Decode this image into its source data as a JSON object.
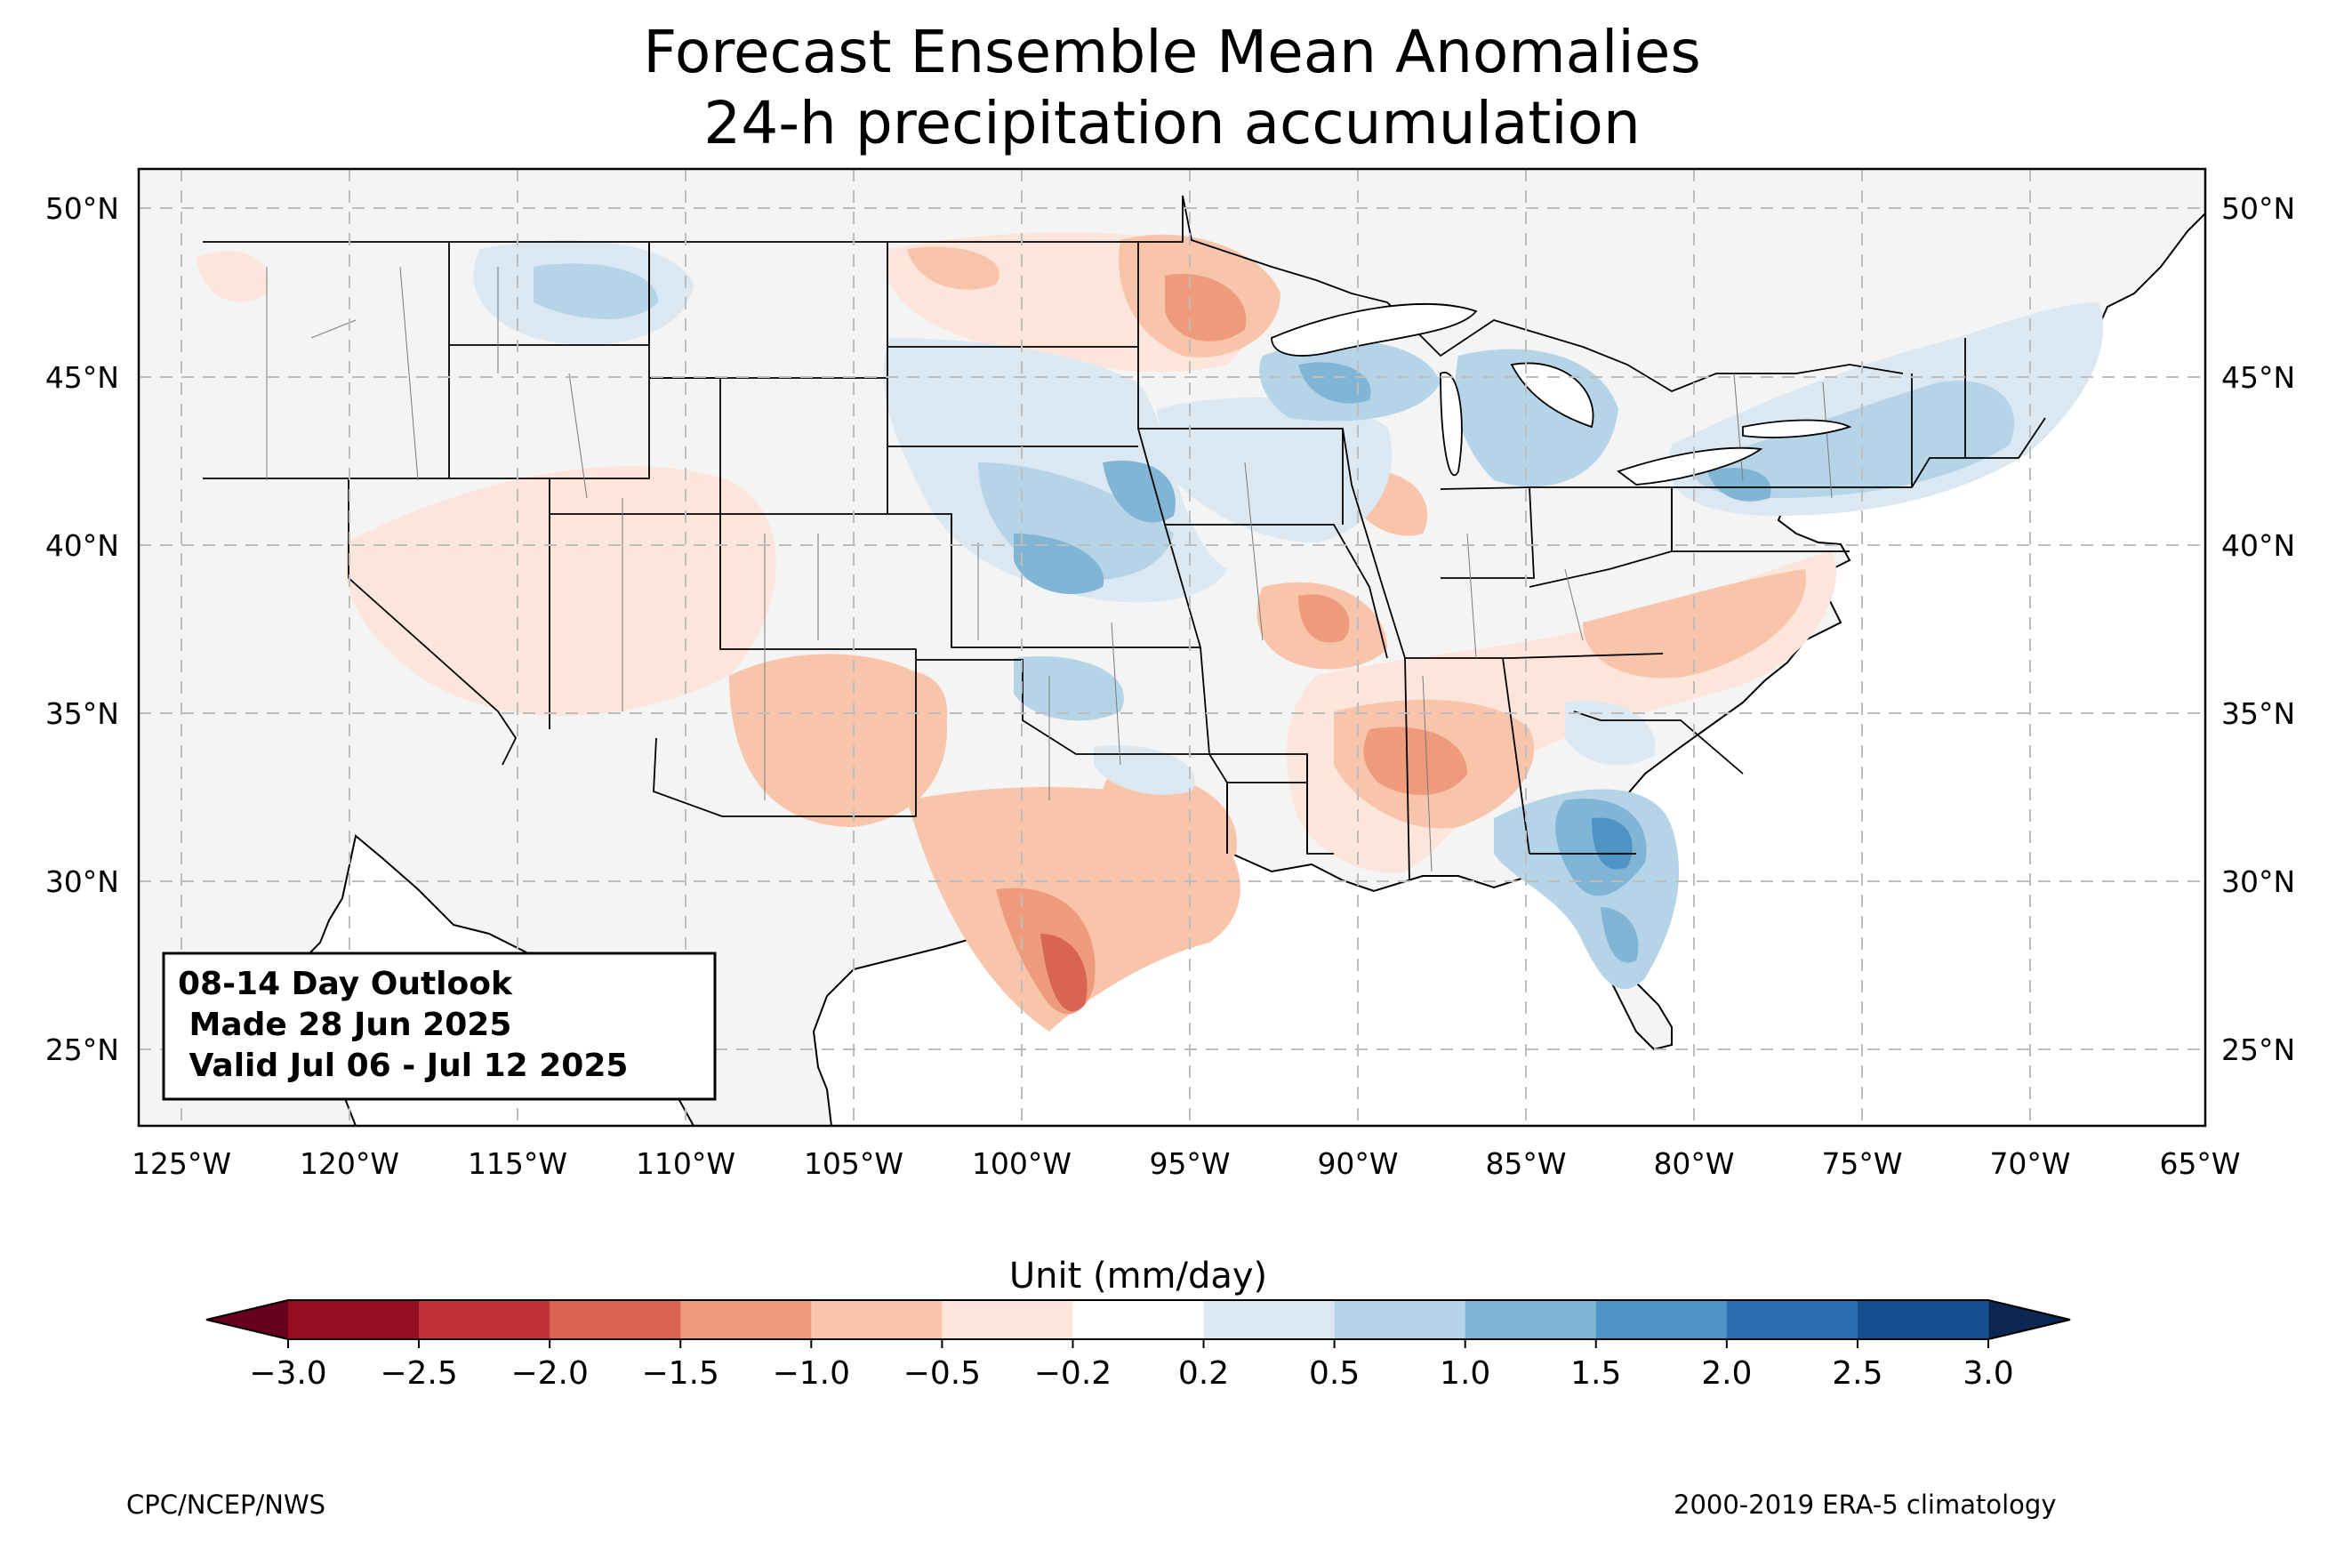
{
  "title": {
    "line1": "Forecast Ensemble Mean Anomalies",
    "line2": "24-h precipitation accumulation"
  },
  "map": {
    "projection": "plate-carree",
    "extent": {
      "lon": [
        -126.3,
        -64.9
      ],
      "lat": [
        22.8,
        51.2
      ]
    },
    "land_color": "#f4f4f4",
    "ocean_color": "#ffffff",
    "lon_ticks": [
      "125°W",
      "120°W",
      "115°W",
      "110°W",
      "105°W",
      "100°W",
      "95°W",
      "90°W",
      "85°W",
      "80°W",
      "75°W",
      "70°W",
      "65°W"
    ],
    "lat_ticks": [
      "50°N",
      "45°N",
      "40°N",
      "35°N",
      "30°N",
      "25°N"
    ]
  },
  "info_box": {
    "line1": "08-14 Day Outlook",
    "line2": " Made 28 Jun 2025",
    "line3": " Valid Jul 06 - Jul 12 2025"
  },
  "colorbar": {
    "label": "Unit (mm/day)",
    "tick_labels": [
      "−3.0",
      "−2.5",
      "−2.0",
      "−1.5",
      "−1.0",
      "−0.5",
      "−0.2",
      "0.2",
      "0.5",
      "1.0",
      "1.5",
      "2.0",
      "2.5",
      "3.0"
    ],
    "colors": [
      "#940e24",
      "#c0313a",
      "#da6453",
      "#ee9b7c",
      "#f8c5ab",
      "#fce6dc",
      "#ffffff",
      "#dbe8f2",
      "#b5d4e8",
      "#81b5d6",
      "#4d93c4",
      "#2a6eb0",
      "#154d8f"
    ],
    "under_color": "#67001f",
    "over_color": "#0b2652"
  },
  "footer": {
    "left": "CPC/NCEP/NWS",
    "right": "2000-2019 ERA-5 climatology"
  },
  "anomaly_regions": [
    {
      "region": "Pacific Northwest coast",
      "value": -0.5
    },
    {
      "region": "Northern Montana",
      "value": 0.5
    },
    {
      "region": "Central Montana",
      "value": 1.0
    },
    {
      "region": "Eastern North Dakota / NW Minnesota",
      "value": -1.0
    },
    {
      "region": "Northern Minnesota",
      "value": -1.5
    },
    {
      "region": "Western North Dakota",
      "value": -0.5
    },
    {
      "region": "South Dakota",
      "value": 0.5
    },
    {
      "region": "Southern Minnesota / Wisconsin",
      "value": 1.0
    },
    {
      "region": "Nebraska",
      "value": 0.5
    },
    {
      "region": "Eastern Nebraska / Iowa",
      "value": 1.0
    },
    {
      "region": "Kansas",
      "value": 1.0
    },
    {
      "region": "Northern Oklahoma",
      "value": 0.5
    },
    {
      "region": "Michigan",
      "value": 0.5
    },
    {
      "region": "Northern Pennsylvania",
      "value": 1.0
    },
    {
      "region": "New York / New England",
      "value": 0.5
    },
    {
      "region": "Wyoming / Utah / Colorado",
      "value": -0.5
    },
    {
      "region": "Southern California / Arizona",
      "value": -0.5
    },
    {
      "region": "New Mexico / West Texas",
      "value": -1.0
    },
    {
      "region": "South Texas coast",
      "value": -2.0
    },
    {
      "region": "East Texas",
      "value": -1.0
    },
    {
      "region": "Southern Missouri",
      "value": -1.0
    },
    {
      "region": "Illinois / Indiana",
      "value": -0.5
    },
    {
      "region": "Mississippi / Alabama",
      "value": -1.5
    },
    {
      "region": "Tennessee / Kentucky",
      "value": -0.5
    },
    {
      "region": "Virginia / Carolinas",
      "value": -1.0
    },
    {
      "region": "Georgia / Florida",
      "value": 1.5
    },
    {
      "region": "South Carolina",
      "value": 0.5
    }
  ]
}
